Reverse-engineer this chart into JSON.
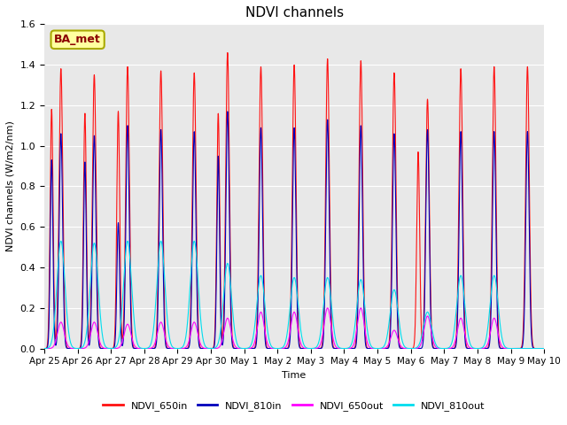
{
  "title": "NDVI channels",
  "xlabel": "Time",
  "ylabel": "NDVI channels (W/m2/nm)",
  "ylim": [
    0,
    1.6
  ],
  "plot_bg_color": "#e8e8e8",
  "fig_bg_color": "#ffffff",
  "legend_label": "BA_met",
  "series": {
    "NDVI_650in": {
      "color": "#ff1111",
      "label": "NDVI_650in"
    },
    "NDVI_810in": {
      "color": "#0000bb",
      "label": "NDVI_810in"
    },
    "NDVI_650out": {
      "color": "#ff00ff",
      "label": "NDVI_650out"
    },
    "NDVI_810out": {
      "color": "#00ddee",
      "label": "NDVI_810out"
    }
  },
  "tick_labels": [
    "Apr 25",
    "Apr 26",
    "Apr 27",
    "Apr 28",
    "Apr 29",
    "Apr 30",
    "May 1",
    "May 2",
    "May 3",
    "May 4",
    "May 5",
    "May 6",
    "May 7",
    "May 8",
    "May 9",
    "May 10"
  ],
  "num_days": 15,
  "peaks_650in": [
    1.38,
    1.35,
    1.39,
    1.37,
    1.36,
    1.46,
    1.39,
    1.4,
    1.43,
    1.42,
    1.36,
    1.23,
    1.38,
    1.39,
    1.39
  ],
  "peaks_810in": [
    1.06,
    1.05,
    1.1,
    1.08,
    1.07,
    1.17,
    1.09,
    1.09,
    1.13,
    1.1,
    1.06,
    1.08,
    1.07,
    1.07,
    1.07
  ],
  "peaks_650out": [
    0.13,
    0.13,
    0.12,
    0.13,
    0.13,
    0.15,
    0.18,
    0.18,
    0.2,
    0.2,
    0.09,
    0.16,
    0.15,
    0.15,
    0.0
  ],
  "peaks_810out": [
    0.53,
    0.52,
    0.53,
    0.53,
    0.53,
    0.42,
    0.36,
    0.35,
    0.35,
    0.34,
    0.29,
    0.18,
    0.36,
    0.36,
    0.0
  ],
  "second_peaks_650in": [
    1.18,
    1.16,
    1.17,
    0.0,
    0.0,
    1.16,
    0.0,
    0.0,
    0.0,
    0.0,
    0.0,
    0.97,
    0.0,
    0.0,
    0.0
  ],
  "second_peaks_810in": [
    0.93,
    0.92,
    0.62,
    0.0,
    0.0,
    0.95,
    0.0,
    0.0,
    0.0,
    0.0,
    0.0,
    0.0,
    0.0,
    0.0,
    0.0
  ],
  "points_per_day": 200
}
